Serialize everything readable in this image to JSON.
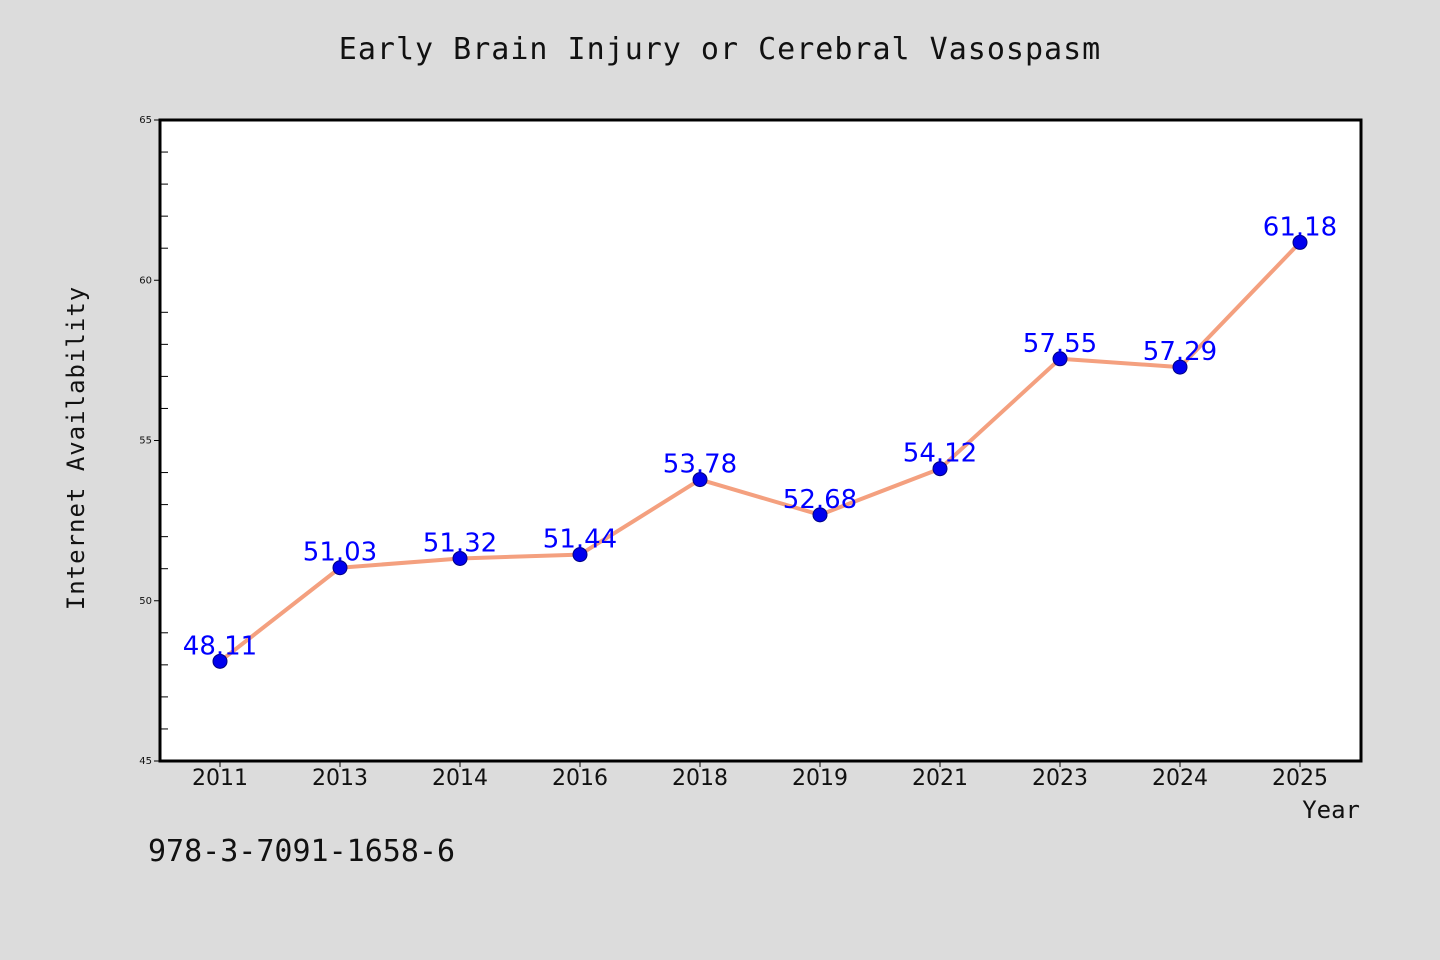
{
  "chart_data": {
    "type": "line",
    "title": "Early Brain Injury or Cerebral Vasospasm",
    "xlabel": "Year",
    "ylabel": "Internet Availability",
    "categories": [
      "2011",
      "2013",
      "2014",
      "2016",
      "2018",
      "2019",
      "2021",
      "2023",
      "2024",
      "2025"
    ],
    "series": [
      {
        "values": [
          48.11,
          51.03,
          51.32,
          51.44,
          53.78,
          52.68,
          54.12,
          57.55,
          57.29,
          61.18
        ],
        "data_labels": [
          "48.11",
          "51.03",
          "51.32",
          "51.44",
          "53.78",
          "52.68",
          "54.12",
          "57.55",
          "57.29",
          "61.18"
        ]
      }
    ],
    "ylim": [
      45,
      65
    ],
    "yticks": [
      "45",
      "50",
      "55",
      "60",
      "65"
    ],
    "grid": false,
    "legend": "none"
  },
  "colors": {
    "line": "#f4a07f",
    "marker": "#0000ee",
    "marker_edge": "#000080",
    "data_label": "#0000ff",
    "plot_background": "#ffffff",
    "figure_background": "#dcdcdc"
  },
  "footnote": "978-3-7091-1658-6"
}
